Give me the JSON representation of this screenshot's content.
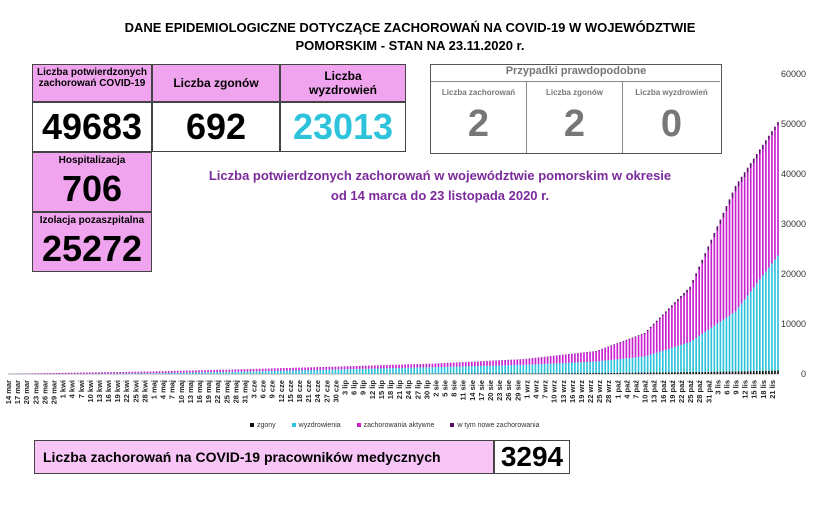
{
  "header": {
    "title_line1": "DANE EPIDEMIOLOGICZNE DOTYCZĄCE ZACHOROWAŃ NA COVID-19 W WOJEWÓDZTWIE",
    "title_line2": "POMORSKIM - STAN NA 23.11.2020 r."
  },
  "stats": {
    "confirmed_label": "Liczba potwierdzonych zachorowań COVID-19",
    "confirmed_value": "49683",
    "deaths_label": "Liczba zgonów",
    "deaths_value": "692",
    "recovered_label": "Liczba wyzdrowień",
    "recovered_value": "23013",
    "hospital_label": "Hospitalizacja",
    "hospital_value": "706",
    "isolation_label": "Izolacja pozaszpitalna",
    "isolation_value": "25272"
  },
  "probable": {
    "header": "Przypadki prawdopodobne",
    "cases_label": "Liczba zachorowań",
    "cases_value": "2",
    "deaths_label": "Liczba zgonów",
    "deaths_value": "2",
    "recovered_label": "Liczba wyzdrowień",
    "recovered_value": "0"
  },
  "subtitle": {
    "line1": "Liczba potwierdzonych zachorowań w województwie pomorskim w okresie",
    "line2": "od 14 marca do 23 listopada 2020 r."
  },
  "medical": {
    "label": "Liczba zachorowań na COVID-19 pracowników medycznych",
    "value": "3294"
  },
  "colors": {
    "pink": "#f0a4ee",
    "active": "#c81fcf",
    "recovered": "#2ec3dc",
    "deaths": "#111111",
    "new": "#5b0a6b",
    "recovered_text": "#2ec3dc"
  },
  "chart_data": {
    "type": "bar",
    "stacked": true,
    "ylim": [
      0,
      60000
    ],
    "yticks": [
      0,
      10000,
      20000,
      30000,
      40000,
      50000,
      60000
    ],
    "x_start": "2020-03-14",
    "x_end": "2020-11-23",
    "xtick_labels": [
      "14 mar",
      "17 mar",
      "20 mar",
      "23 mar",
      "26 mar",
      "29 mar",
      "1 kwi",
      "4 kwi",
      "7 kwi",
      "10 kwi",
      "13 kwi",
      "16 kwi",
      "19 kwi",
      "22 kwi",
      "25 kwi",
      "28 kwi",
      "1 maj",
      "4 maj",
      "7 maj",
      "10 maj",
      "13 maj",
      "16 maj",
      "19 maj",
      "22 maj",
      "25 maj",
      "28 maj",
      "31 maj",
      "3 cze",
      "6 cze",
      "9 cze",
      "12 cze",
      "15 cze",
      "18 cze",
      "21 cze",
      "24 cze",
      "27 cze",
      "30 cze",
      "3 lip",
      "6 lip",
      "9 lip",
      "12 lip",
      "15 lip",
      "18 lip",
      "21 lip",
      "24 lip",
      "27 lip",
      "30 lip",
      "2 sie",
      "5 sie",
      "8 sie",
      "11 sie",
      "14 sie",
      "17 sie",
      "20 sie",
      "23 sie",
      "26 sie",
      "29 sie",
      "1 wrz",
      "4 wrz",
      "7 wrz",
      "10 wrz",
      "13 wrz",
      "16 wrz",
      "19 wrz",
      "22 wrz",
      "25 wrz",
      "28 wrz",
      "1 paź",
      "4 paź",
      "7 paź",
      "10 paź",
      "13 paź",
      "16 paź",
      "19 paź",
      "22 paź",
      "25 paź",
      "28 paź",
      "31 paź",
      "3 lis",
      "6 lis",
      "9 lis",
      "12 lis",
      "15 lis",
      "18 lis",
      "21 lis"
    ],
    "series": [
      {
        "name": "zgony",
        "values": [
          0,
          0,
          0,
          10,
          25,
          60,
          120,
          200,
          300,
          400,
          520,
          692
        ]
      },
      {
        "name": "wyzdrowienia",
        "values": [
          0,
          5,
          150,
          500,
          900,
          1300,
          1700,
          2300,
          3200,
          6000,
          12000,
          23013
        ]
      },
      {
        "name": "zachorowania aktywne",
        "values": [
          0,
          200,
          350,
          450,
          550,
          700,
          1100,
          2000,
          4500,
          10500,
          24000,
          25978
        ]
      },
      {
        "name": "w tym nowe zachorowania",
        "values": [
          0,
          10,
          5,
          10,
          15,
          20,
          60,
          90,
          200,
          550,
          1100,
          700
        ]
      }
    ],
    "series_days": [
      0,
      17,
      48,
      79,
      109,
      140,
      170,
      194,
      210,
      225,
      240,
      254
    ]
  }
}
